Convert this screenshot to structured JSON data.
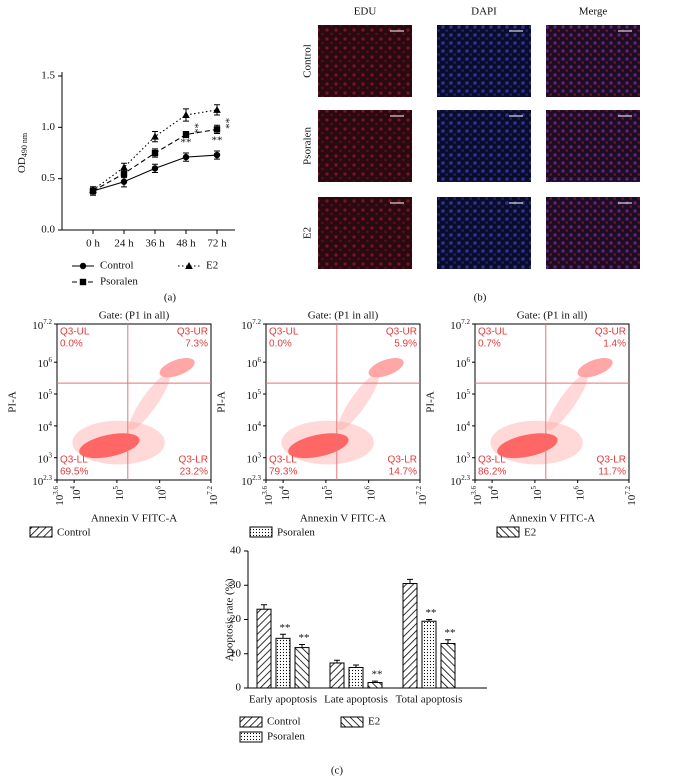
{
  "panel_labels": [
    "(a)",
    "(b)",
    "(c)"
  ],
  "micrographs": {
    "columns": [
      "EDU",
      "DAPI",
      "Merge"
    ],
    "rows": [
      "Control",
      "Psoralen",
      "E2"
    ]
  },
  "chart_data": [
    {
      "type": "line",
      "ylabel": "OD",
      "ylabel_sub": "490 nm",
      "categories": [
        "0 h",
        "24 h",
        "36 h",
        "48 h",
        "72 h"
      ],
      "ylim": [
        0,
        1.5
      ],
      "yticks": [
        {
          "value": 0,
          "label": "0.0"
        },
        {
          "value": 0.5,
          "label": "0.5"
        },
        {
          "value": 1,
          "label": "1.0"
        },
        {
          "value": 1.5,
          "label": "1.5"
        }
      ],
      "series": [
        {
          "name": "Control",
          "color": "#000000",
          "marker": "circle",
          "dash": "solid",
          "values": [
            0.38,
            0.47,
            0.6,
            0.71,
            0.73
          ],
          "errors": [
            0.04,
            0.05,
            0.04,
            0.04,
            0.04
          ],
          "significance": [
            null,
            null,
            null,
            "**",
            "**"
          ],
          "significance_position": "below"
        },
        {
          "name": "Psoralen",
          "color": "#000000",
          "marker": "square",
          "dash": "dashed",
          "values": [
            0.38,
            0.55,
            0.75,
            0.93,
            0.98
          ],
          "errors": [
            0.04,
            0.04,
            0.04,
            0.03,
            0.04
          ],
          "significance": [
            null,
            null,
            null,
            "**",
            "**"
          ],
          "significance_position": "right"
        },
        {
          "name": "E2",
          "color": "#000000",
          "marker": "triangle",
          "dash": "dotted",
          "values": [
            0.39,
            0.61,
            0.91,
            1.12,
            1.17
          ],
          "errors": [
            0.03,
            0.04,
            0.05,
            0.06,
            0.05
          ],
          "significance": [
            null,
            null,
            null,
            null,
            null
          ],
          "significance_position": "above"
        }
      ]
    },
    {
      "type": "scatter",
      "title": "Gate: (P1 in all)",
      "xlabel": "Annexin V FITC-A",
      "ylabel": "PI-A",
      "log": true,
      "xlim": [
        3981.07,
        15848932
      ],
      "ylim": [
        199.53,
        15848932
      ],
      "xticks": [
        {
          "value": 3981.07,
          "label": "10^3.6"
        },
        {
          "value": 10000,
          "label": "10^4"
        },
        {
          "value": 100000,
          "label": "10^5"
        },
        {
          "value": 1000000,
          "label": "10^6"
        },
        {
          "value": 15848932,
          "label": "10^7.2"
        }
      ],
      "yticks": [
        {
          "value": 199.53,
          "label": "10^2.3"
        },
        {
          "value": 1000,
          "label": "10^3"
        },
        {
          "value": 10000,
          "label": "10^4"
        },
        {
          "value": 100000,
          "label": "10^5"
        },
        {
          "value": 1000000,
          "label": "10^6"
        },
        {
          "value": 15848932,
          "label": "10^7.2"
        }
      ],
      "gate": [
        180000,
        220000
      ],
      "quadrant_names": [
        "Q3-UL",
        "Q3-UR",
        "Q3-LL",
        "Q3-LR"
      ],
      "quadrant_labels": [
        "0.0%",
        "7.3%",
        "69.5%",
        "23.2%"
      ],
      "legend": {
        "name": "Control",
        "pattern": "hatch-right"
      }
    },
    {
      "type": "scatter",
      "title": "Gate: (P1 in all)",
      "xlabel": "Annexin V FITC-A",
      "ylabel": "PI-A",
      "log": true,
      "xlim": [
        3981.07,
        15848932
      ],
      "ylim": [
        199.53,
        15848932
      ],
      "xticks": [
        {
          "value": 3981.07,
          "label": "10^3.6"
        },
        {
          "value": 10000,
          "label": "10^4"
        },
        {
          "value": 100000,
          "label": "10^5"
        },
        {
          "value": 1000000,
          "label": "10^6"
        },
        {
          "value": 15848932,
          "label": "10^7.2"
        }
      ],
      "yticks": [
        {
          "value": 199.53,
          "label": "10^2.3"
        },
        {
          "value": 1000,
          "label": "10^3"
        },
        {
          "value": 10000,
          "label": "10^4"
        },
        {
          "value": 100000,
          "label": "10^5"
        },
        {
          "value": 1000000,
          "label": "10^6"
        },
        {
          "value": 15848932,
          "label": "10^7.2"
        }
      ],
      "gate": [
        180000,
        220000
      ],
      "quadrant_names": [
        "Q3-UL",
        "Q3-UR",
        "Q3-LL",
        "Q3-LR"
      ],
      "quadrant_labels": [
        "0.0%",
        "5.9%",
        "79.3%",
        "14.7%"
      ],
      "legend": {
        "name": "Psoralen",
        "pattern": "dots"
      }
    },
    {
      "type": "scatter",
      "title": "Gate: (P1 in all)",
      "xlabel": "Annexin V FITC-A",
      "ylabel": "PI-A",
      "log": true,
      "xlim": [
        3981.07,
        15848932
      ],
      "ylim": [
        199.53,
        15848932
      ],
      "xticks": [
        {
          "value": 3981.07,
          "label": "10^3.6"
        },
        {
          "value": 10000,
          "label": "10^4"
        },
        {
          "value": 100000,
          "label": "10^5"
        },
        {
          "value": 1000000,
          "label": "10^6"
        },
        {
          "value": 15848932,
          "label": "10^7.2"
        }
      ],
      "yticks": [
        {
          "value": 199.53,
          "label": "10^2.3"
        },
        {
          "value": 1000,
          "label": "10^3"
        },
        {
          "value": 10000,
          "label": "10^4"
        },
        {
          "value": 100000,
          "label": "10^5"
        },
        {
          "value": 1000000,
          "label": "10^6"
        },
        {
          "value": 15848932,
          "label": "10^7.2"
        }
      ],
      "gate": [
        180000,
        220000
      ],
      "quadrant_names": [
        "Q3-UL",
        "Q3-UR",
        "Q3-LL",
        "Q3-LR"
      ],
      "quadrant_labels": [
        "0.7%",
        "1.4%",
        "86.2%",
        "11.7%"
      ],
      "legend": {
        "name": "E2",
        "pattern": "hatch-left"
      }
    },
    {
      "type": "bar",
      "ylabel": "Apoptosis rate (%)",
      "categories": [
        "Early apoptosis",
        "Late apoptosis",
        "Total apoptosis"
      ],
      "ylim": [
        0,
        40
      ],
      "yticks": [
        0,
        10,
        20,
        30,
        40
      ],
      "series": [
        {
          "name": "Control",
          "pattern": "hatch-right",
          "values": [
            23,
            7.3,
            30.5
          ],
          "errors": [
            1.3,
            0.8,
            1.2
          ],
          "significance": [
            null,
            null,
            null
          ]
        },
        {
          "name": "Psoralen",
          "pattern": "dots",
          "values": [
            14.5,
            6,
            19.5
          ],
          "errors": [
            1.2,
            0.7,
            0.5
          ],
          "significance": [
            "**",
            null,
            "**"
          ]
        },
        {
          "name": "E2",
          "pattern": "hatch-left",
          "values": [
            11.8,
            1.6,
            13
          ],
          "errors": [
            0.9,
            0.4,
            1.1
          ],
          "significance": [
            "**",
            "**",
            "**"
          ]
        }
      ]
    }
  ]
}
